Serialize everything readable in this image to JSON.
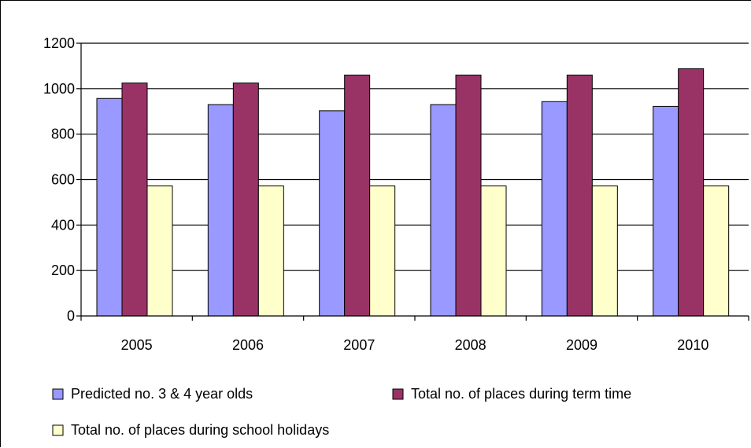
{
  "chart_data": {
    "type": "bar",
    "categories": [
      "2005",
      "2006",
      "2007",
      "2008",
      "2009",
      "2010"
    ],
    "series": [
      {
        "name": "Predicted no. 3 & 4 year olds",
        "color": "#9999ff",
        "values": [
          957,
          930,
          903,
          930,
          943,
          922
        ]
      },
      {
        "name": "Total no. of places during term time",
        "color": "#993366",
        "values": [
          1025,
          1025,
          1060,
          1060,
          1060,
          1088
        ]
      },
      {
        "name": "Total no. of places during school holidays",
        "color": "#ffffcc",
        "values": [
          572,
          572,
          572,
          572,
          572,
          572
        ]
      }
    ],
    "yticks": [
      "0",
      "200",
      "400",
      "600",
      "800",
      "1000",
      "1200"
    ],
    "ylim": [
      0,
      1200
    ],
    "grid": true,
    "legend": "bottom",
    "title": "",
    "xlabel": "",
    "ylabel": ""
  }
}
